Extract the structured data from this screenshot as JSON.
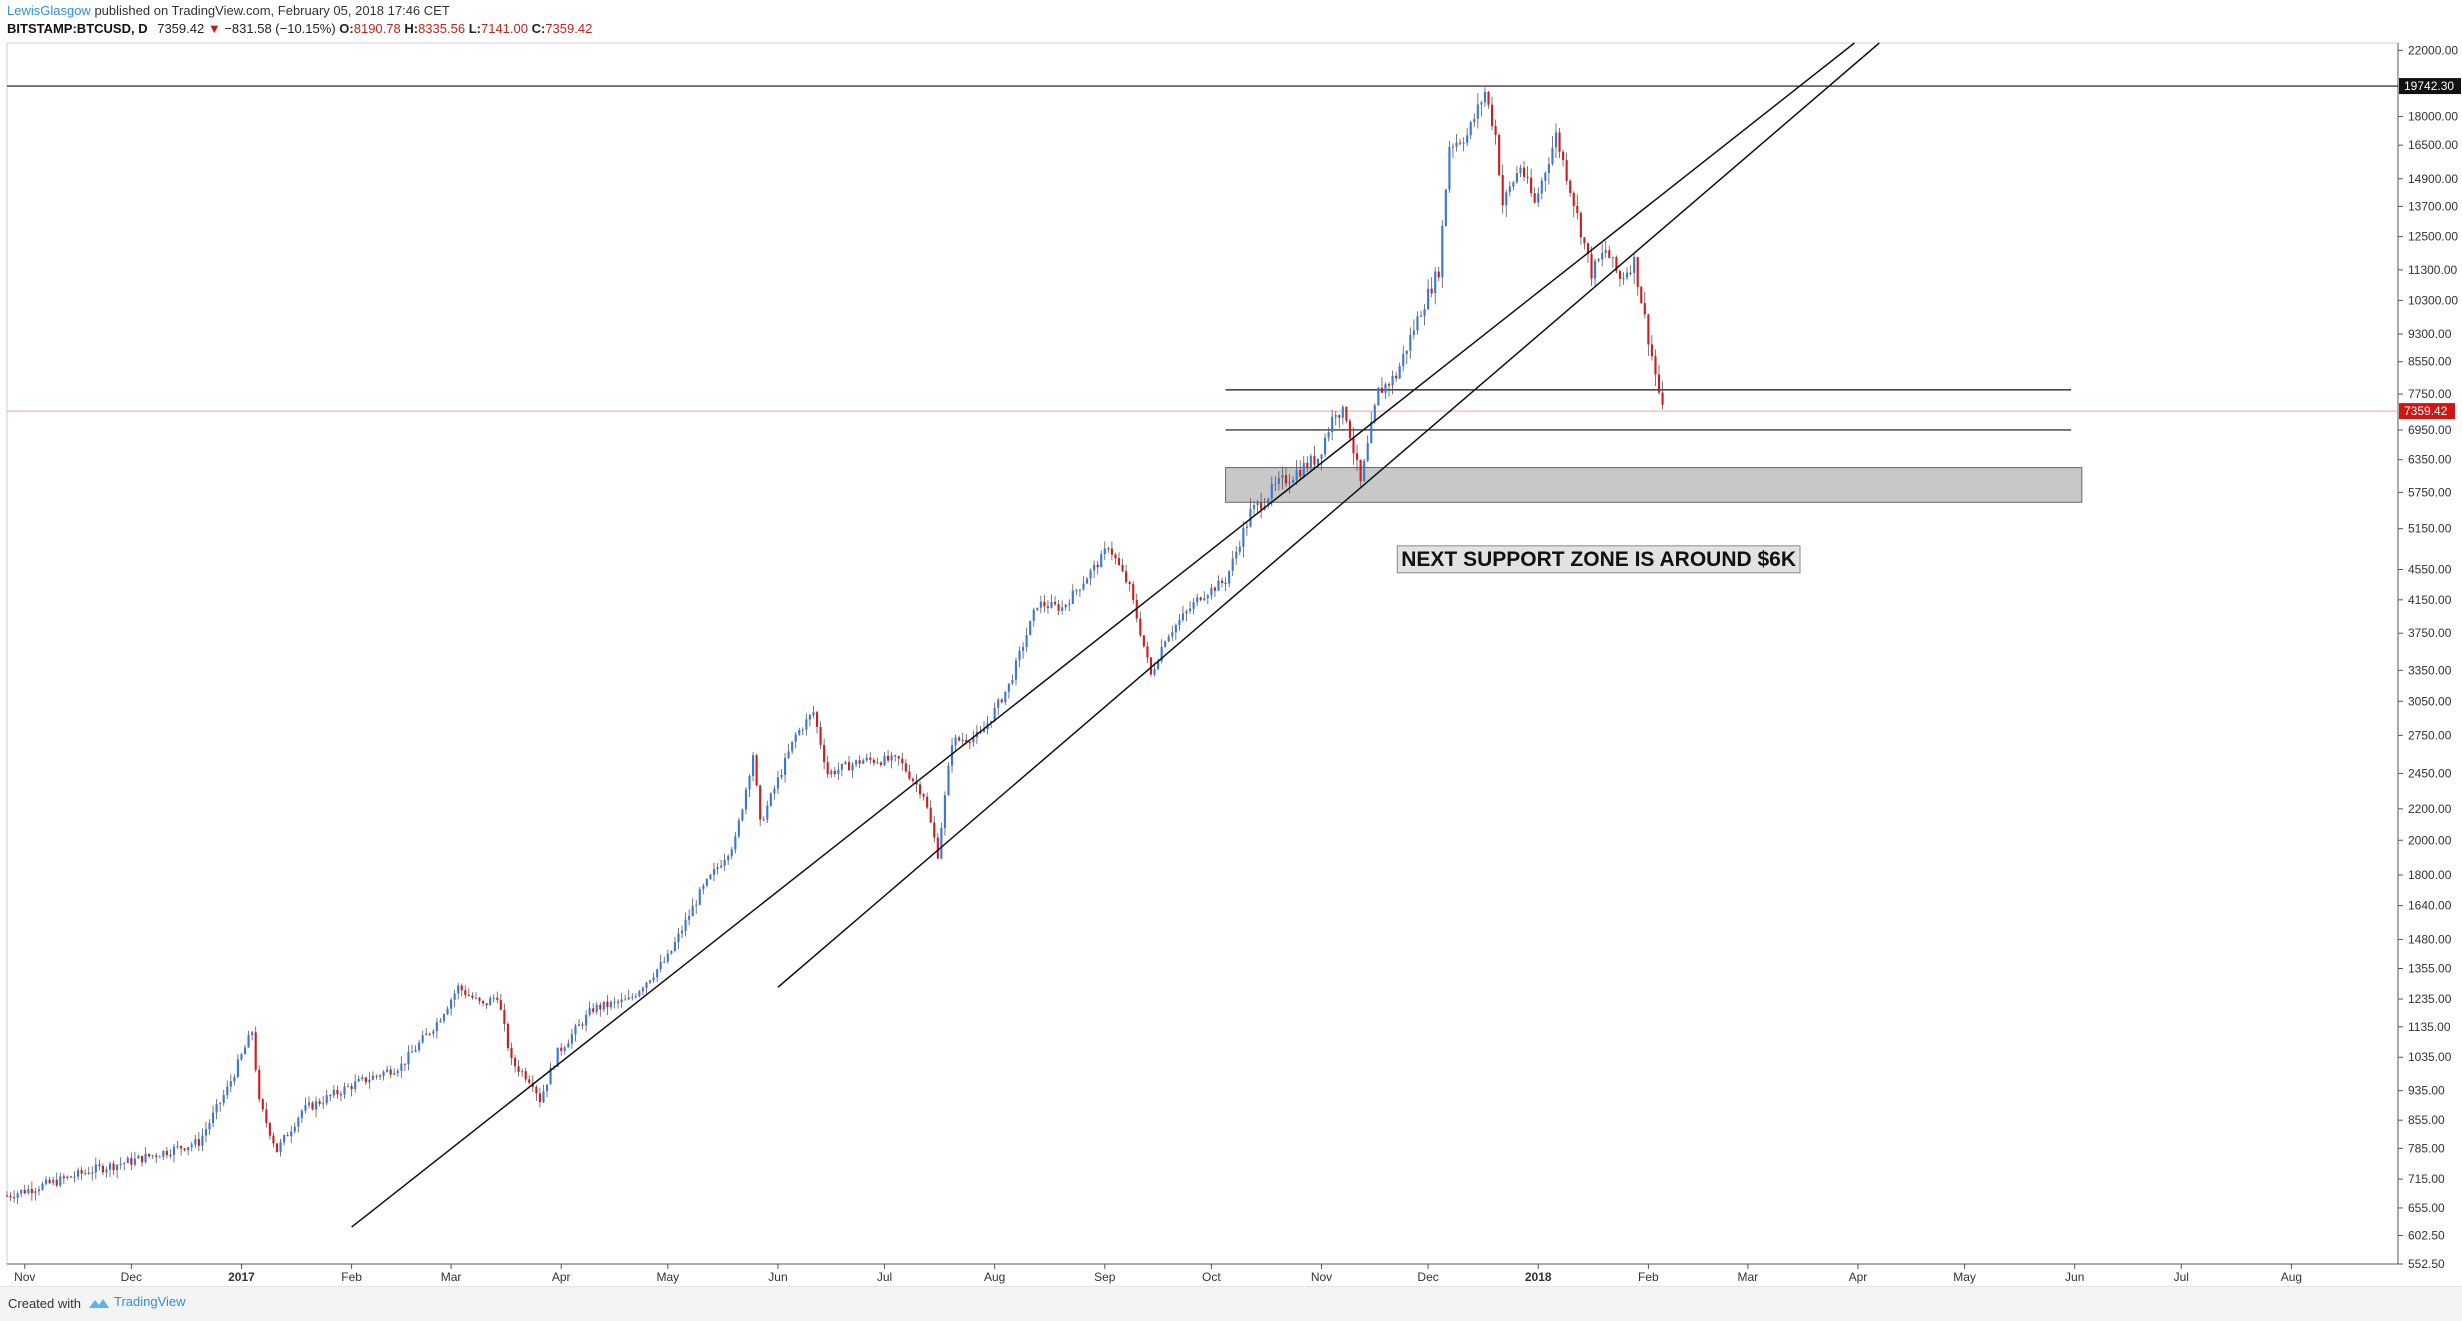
{
  "header": {
    "author": "LewisGlasgow",
    "published_text": "published on TradingView.com, February 05, 2018 17:46 CET",
    "symbol": "BITSTAMP:BTCUSD, D",
    "last": "7359.42",
    "change": "−831.58 (−10.15%)",
    "open_label": "O:",
    "open": "8190.78",
    "high_label": "H:",
    "high": "8335.56",
    "low_label": "L:",
    "low": "7141.00",
    "close_label": "C:",
    "close": "7359.42"
  },
  "footer": {
    "created_with": "Created with",
    "brand": "TradingView"
  },
  "colors": {
    "up": "#3a78d8",
    "down": "#d21b1b",
    "zone": "#c8c8c8",
    "price_line": "#f2a49a",
    "badge": "#d21414"
  },
  "chart_data": {
    "type": "candlestick",
    "y_scale": "log",
    "ylim": [
      552.5,
      22500
    ],
    "x_range": [
      "2016-10-27",
      "2018-08-31"
    ],
    "y_ticks": [
      "22000.00",
      "18000.00",
      "16500.00",
      "14900.00",
      "13700.00",
      "12500.00",
      "11300.00",
      "10300.00",
      "9300.00",
      "8550.00",
      "7750.00",
      "6950.00",
      "6350.00",
      "5750.00",
      "5150.00",
      "4550.00",
      "4150.00",
      "3750.00",
      "3350.00",
      "3050.00",
      "2750.00",
      "2450.00",
      "2200.00",
      "2000.00",
      "1800.00",
      "1640.00",
      "1480.00",
      "1355.00",
      "1235.00",
      "1135.00",
      "1035.00",
      "935.00",
      "855.00",
      "785.00",
      "715.00",
      "655.00",
      "602.50",
      "552.50"
    ],
    "x_labels": [
      {
        "date": "2016-11-01",
        "label": "Nov",
        "bold": false
      },
      {
        "date": "2016-12-01",
        "label": "Dec",
        "bold": false
      },
      {
        "date": "2017-01-01",
        "label": "2017",
        "bold": true
      },
      {
        "date": "2017-02-01",
        "label": "Feb",
        "bold": false
      },
      {
        "date": "2017-03-01",
        "label": "Mar",
        "bold": false
      },
      {
        "date": "2017-04-01",
        "label": "Apr",
        "bold": false
      },
      {
        "date": "2017-05-01",
        "label": "May",
        "bold": false
      },
      {
        "date": "2017-06-01",
        "label": "Jun",
        "bold": false
      },
      {
        "date": "2017-07-01",
        "label": "Jul",
        "bold": false
      },
      {
        "date": "2017-08-01",
        "label": "Aug",
        "bold": false
      },
      {
        "date": "2017-09-01",
        "label": "Sep",
        "bold": false
      },
      {
        "date": "2017-10-01",
        "label": "Oct",
        "bold": false
      },
      {
        "date": "2017-11-01",
        "label": "Nov",
        "bold": false
      },
      {
        "date": "2017-12-01",
        "label": "Dec",
        "bold": false
      },
      {
        "date": "2018-01-01",
        "label": "2018",
        "bold": true
      },
      {
        "date": "2018-02-01",
        "label": "Feb",
        "bold": false
      },
      {
        "date": "2018-03-01",
        "label": "Mar",
        "bold": false
      },
      {
        "date": "2018-04-01",
        "label": "Apr",
        "bold": false
      },
      {
        "date": "2018-05-01",
        "label": "May",
        "bold": false
      },
      {
        "date": "2018-06-01",
        "label": "Jun",
        "bold": false
      },
      {
        "date": "2018-07-01",
        "label": "Jul",
        "bold": false
      },
      {
        "date": "2018-08-01",
        "label": "Aug",
        "bold": false
      }
    ],
    "price_path": [
      [
        "2016-10-27",
        680
      ],
      [
        "2016-11-10",
        710
      ],
      [
        "2016-11-20",
        735
      ],
      [
        "2016-12-01",
        755
      ],
      [
        "2016-12-20",
        800
      ],
      [
        "2016-12-28",
        940
      ],
      [
        "2017-01-04",
        1120
      ],
      [
        "2017-01-06",
        900
      ],
      [
        "2017-01-11",
        780
      ],
      [
        "2017-01-18",
        880
      ],
      [
        "2017-02-01",
        950
      ],
      [
        "2017-02-15",
        1010
      ],
      [
        "2017-02-25",
        1150
      ],
      [
        "2017-03-03",
        1280
      ],
      [
        "2017-03-10",
        1210
      ],
      [
        "2017-03-14",
        1250
      ],
      [
        "2017-03-18",
        1020
      ],
      [
        "2017-03-24",
        960
      ],
      [
        "2017-03-26",
        910
      ],
      [
        "2017-03-31",
        1050
      ],
      [
        "2017-04-10",
        1200
      ],
      [
        "2017-04-20",
        1230
      ],
      [
        "2017-05-01",
        1400
      ],
      [
        "2017-05-10",
        1700
      ],
      [
        "2017-05-20",
        2000
      ],
      [
        "2017-05-25",
        2600
      ],
      [
        "2017-05-27",
        2100
      ],
      [
        "2017-06-06",
        2750
      ],
      [
        "2017-06-11",
        2950
      ],
      [
        "2017-06-15",
        2450
      ],
      [
        "2017-06-25",
        2550
      ],
      [
        "2017-07-05",
        2550
      ],
      [
        "2017-07-12",
        2300
      ],
      [
        "2017-07-16",
        1920
      ],
      [
        "2017-07-20",
        2700
      ],
      [
        "2017-07-28",
        2750
      ],
      [
        "2017-08-05",
        3200
      ],
      [
        "2017-08-13",
        4100
      ],
      [
        "2017-08-20",
        4050
      ],
      [
        "2017-08-31",
        4700
      ],
      [
        "2017-09-02",
        4900
      ],
      [
        "2017-09-08",
        4300
      ],
      [
        "2017-09-14",
        3300
      ],
      [
        "2017-09-18",
        3700
      ],
      [
        "2017-09-28",
        4200
      ],
      [
        "2017-10-05",
        4400
      ],
      [
        "2017-10-12",
        5400
      ],
      [
        "2017-10-20",
        5900
      ],
      [
        "2017-10-31",
        6400
      ],
      [
        "2017-11-05",
        7400
      ],
      [
        "2017-11-08",
        7250
      ],
      [
        "2017-11-12",
        5900
      ],
      [
        "2017-11-17",
        7800
      ],
      [
        "2017-11-22",
        8200
      ],
      [
        "2017-11-26",
        9200
      ],
      [
        "2017-11-29",
        10000
      ],
      [
        "2017-12-04",
        11300
      ],
      [
        "2017-12-07",
        16500
      ],
      [
        "2017-12-12",
        17000
      ],
      [
        "2017-12-17",
        19400
      ],
      [
        "2017-12-20",
        17000
      ],
      [
        "2017-12-22",
        13800
      ],
      [
        "2017-12-27",
        15500
      ],
      [
        "2017-12-31",
        13800
      ],
      [
        "2018-01-06",
        17000
      ],
      [
        "2018-01-10",
        14500
      ],
      [
        "2018-01-16",
        11200
      ],
      [
        "2018-01-20",
        12000
      ],
      [
        "2018-01-24",
        11000
      ],
      [
        "2018-01-28",
        11600
      ],
      [
        "2018-02-01",
        9200
      ],
      [
        "2018-02-05",
        7359
      ]
    ],
    "hlines": [
      {
        "value": 19742.3,
        "label": "19742.30",
        "x_from": "2016-10-27",
        "x_to": "2018-08-31"
      },
      {
        "value": 7850,
        "x_from": "2017-10-05",
        "x_to": "2018-05-31"
      },
      {
        "value": 6950,
        "x_from": "2017-10-05",
        "x_to": "2018-05-31"
      }
    ],
    "zone": {
      "from": 5580,
      "to": 6200,
      "x_from": "2017-10-05",
      "x_to": "2018-06-03"
    },
    "trendlines": [
      {
        "p1": [
          "2017-02-01",
          618
        ],
        "p2": [
          "2018-03-31",
          22500
        ]
      },
      {
        "p1": [
          "2017-06-01",
          1280
        ],
        "p2": [
          "2018-04-07",
          22500
        ]
      }
    ],
    "current_price": {
      "value": 7359.42,
      "label": "7359.42"
    },
    "annotation": {
      "text": "NEXT SUPPORT ZONE IS AROUND $6K",
      "date": "2018-01-18",
      "value": 4700
    }
  }
}
